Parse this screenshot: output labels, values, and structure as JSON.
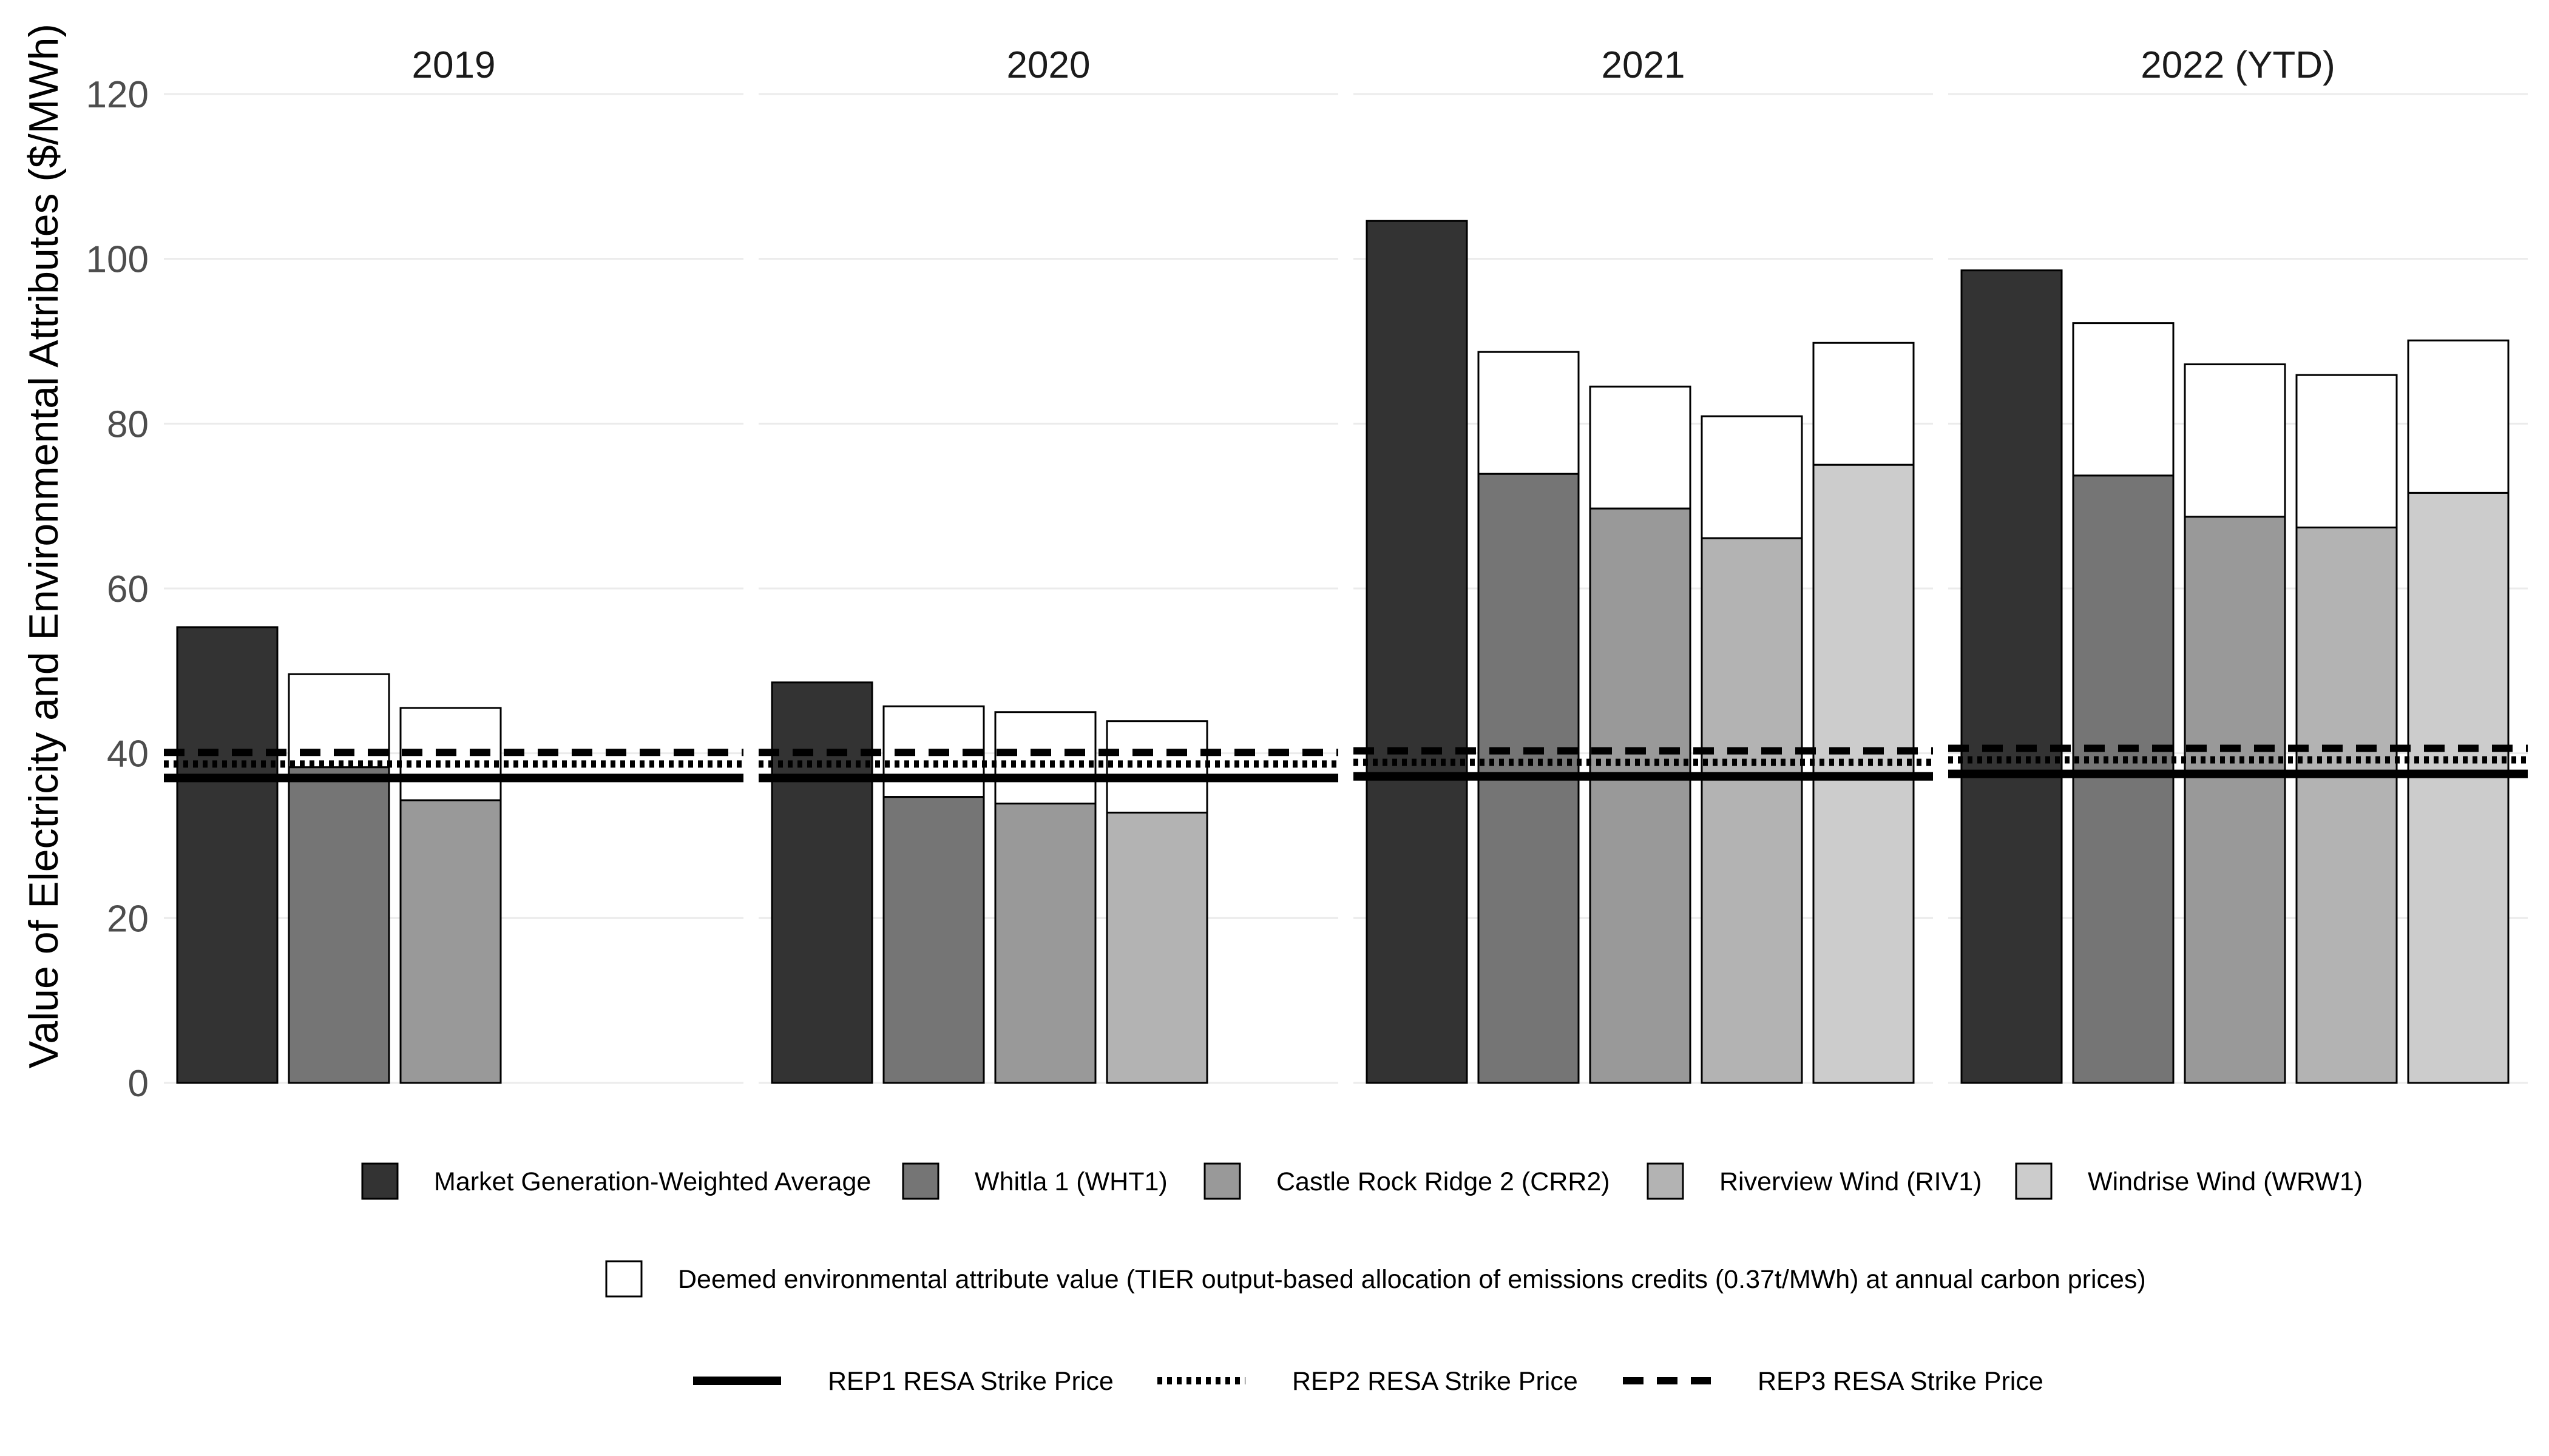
{
  "chart_data": {
    "type": "bar",
    "ylabel": "Value of Electricity and Environmental Attributes ($/MWh)",
    "ylim": [
      0,
      120
    ],
    "yticks": [
      0,
      20,
      40,
      60,
      80,
      100,
      120
    ],
    "grid": "horizontal",
    "legend_position": "bottom",
    "facets": [
      {
        "label": "2019",
        "bars": [
          {
            "series": "Market Generation-Weighted Average",
            "value": 55.3,
            "env_attribute": 0
          },
          {
            "series": "Whitla 1 (WHT1)",
            "value": 38.3,
            "env_attribute": 11.3
          },
          {
            "series": "Castle Rock Ridge 2 (CRR2)",
            "value": 34.3,
            "env_attribute": 11.2
          }
        ],
        "strike_prices": {
          "REP1": 37.0,
          "REP2": 38.7,
          "REP3": 40.1
        }
      },
      {
        "label": "2020",
        "bars": [
          {
            "series": "Market Generation-Weighted Average",
            "value": 48.6,
            "env_attribute": 0
          },
          {
            "series": "Whitla 1 (WHT1)",
            "value": 34.7,
            "env_attribute": 11.0
          },
          {
            "series": "Castle Rock Ridge 2 (CRR2)",
            "value": 33.9,
            "env_attribute": 11.1
          },
          {
            "series": "Riverview Wind (RIV1)",
            "value": 32.8,
            "env_attribute": 11.1
          }
        ],
        "strike_prices": {
          "REP1": 37.0,
          "REP2": 38.7,
          "REP3": 40.1
        }
      },
      {
        "label": "2021",
        "bars": [
          {
            "series": "Market Generation-Weighted Average",
            "value": 104.6,
            "env_attribute": 0
          },
          {
            "series": "Whitla 1 (WHT1)",
            "value": 73.9,
            "env_attribute": 14.8
          },
          {
            "series": "Castle Rock Ridge 2 (CRR2)",
            "value": 69.7,
            "env_attribute": 14.8
          },
          {
            "series": "Riverview Wind (RIV1)",
            "value": 66.1,
            "env_attribute": 14.8
          },
          {
            "series": "Windrise Wind (WRW1)",
            "value": 75.0,
            "env_attribute": 14.8
          }
        ],
        "strike_prices": {
          "REP1": 37.2,
          "REP2": 38.9,
          "REP3": 40.3
        }
      },
      {
        "label": "2022 (YTD)",
        "bars": [
          {
            "series": "Market Generation-Weighted Average",
            "value": 98.6,
            "env_attribute": 0
          },
          {
            "series": "Whitla 1 (WHT1)",
            "value": 73.7,
            "env_attribute": 18.5
          },
          {
            "series": "Castle Rock Ridge 2 (CRR2)",
            "value": 68.7,
            "env_attribute": 18.5
          },
          {
            "series": "Riverview Wind (RIV1)",
            "value": 67.4,
            "env_attribute": 18.5
          },
          {
            "series": "Windrise Wind (WRW1)",
            "value": 71.6,
            "env_attribute": 18.5
          }
        ],
        "strike_prices": {
          "REP1": 37.5,
          "REP2": 39.2,
          "REP3": 40.6
        }
      }
    ],
    "series": [
      {
        "name": "Market Generation-Weighted Average",
        "color": "#333333",
        "slot": 0
      },
      {
        "name": "Whitla 1 (WHT1)",
        "color": "#757575",
        "slot": 1
      },
      {
        "name": "Castle Rock Ridge 2 (CRR2)",
        "color": "#999999",
        "slot": 2
      },
      {
        "name": "Riverview Wind (RIV1)",
        "color": "#b3b3b3",
        "slot": 3
      },
      {
        "name": "Windrise Wind (WRW1)",
        "color": "#cccccc",
        "slot": 4
      }
    ],
    "env_attribute_legend": {
      "label": "Deemed environmental attribute value (TIER output-based allocation of emissions credits (0.37t/MWh) at annual carbon prices)",
      "color": "#ffffff"
    },
    "strike_lines": [
      {
        "key": "REP1",
        "label": "REP1 RESA Strike Price",
        "style": "solid"
      },
      {
        "key": "REP2",
        "label": "REP2 RESA Strike Price",
        "style": "dotted"
      },
      {
        "key": "REP3",
        "label": "REP3 RESA Strike Price",
        "style": "dashed"
      }
    ]
  }
}
